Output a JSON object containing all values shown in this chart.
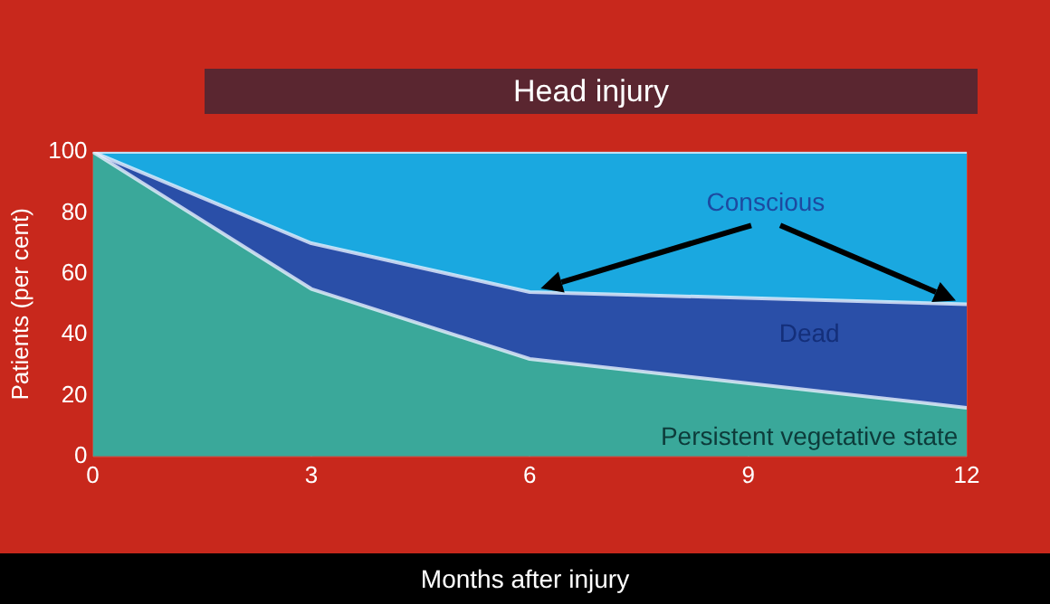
{
  "chart_data": {
    "type": "area",
    "title": "Head injury",
    "xlabel": "Months after injury",
    "ylabel": "Patients (per cent)",
    "x": [
      0,
      3,
      6,
      12
    ],
    "stacked": true,
    "series": [
      {
        "name": "Persistent vegetative state",
        "color": "#3aa89a",
        "values": [
          100,
          55,
          32,
          16
        ]
      },
      {
        "name": "Dead",
        "color": "#2a4fa8",
        "values": [
          0,
          15,
          22,
          34
        ]
      },
      {
        "name": "Conscious",
        "color": "#1aa8e0",
        "values": [
          0,
          30,
          46,
          50
        ]
      }
    ],
    "xlim": [
      0,
      12
    ],
    "xticks": [
      0,
      3,
      6,
      9,
      12
    ],
    "ylim": [
      0,
      100
    ],
    "yticks": [
      0,
      20,
      40,
      60,
      80,
      100
    ],
    "grid": true,
    "legend": false
  }
}
